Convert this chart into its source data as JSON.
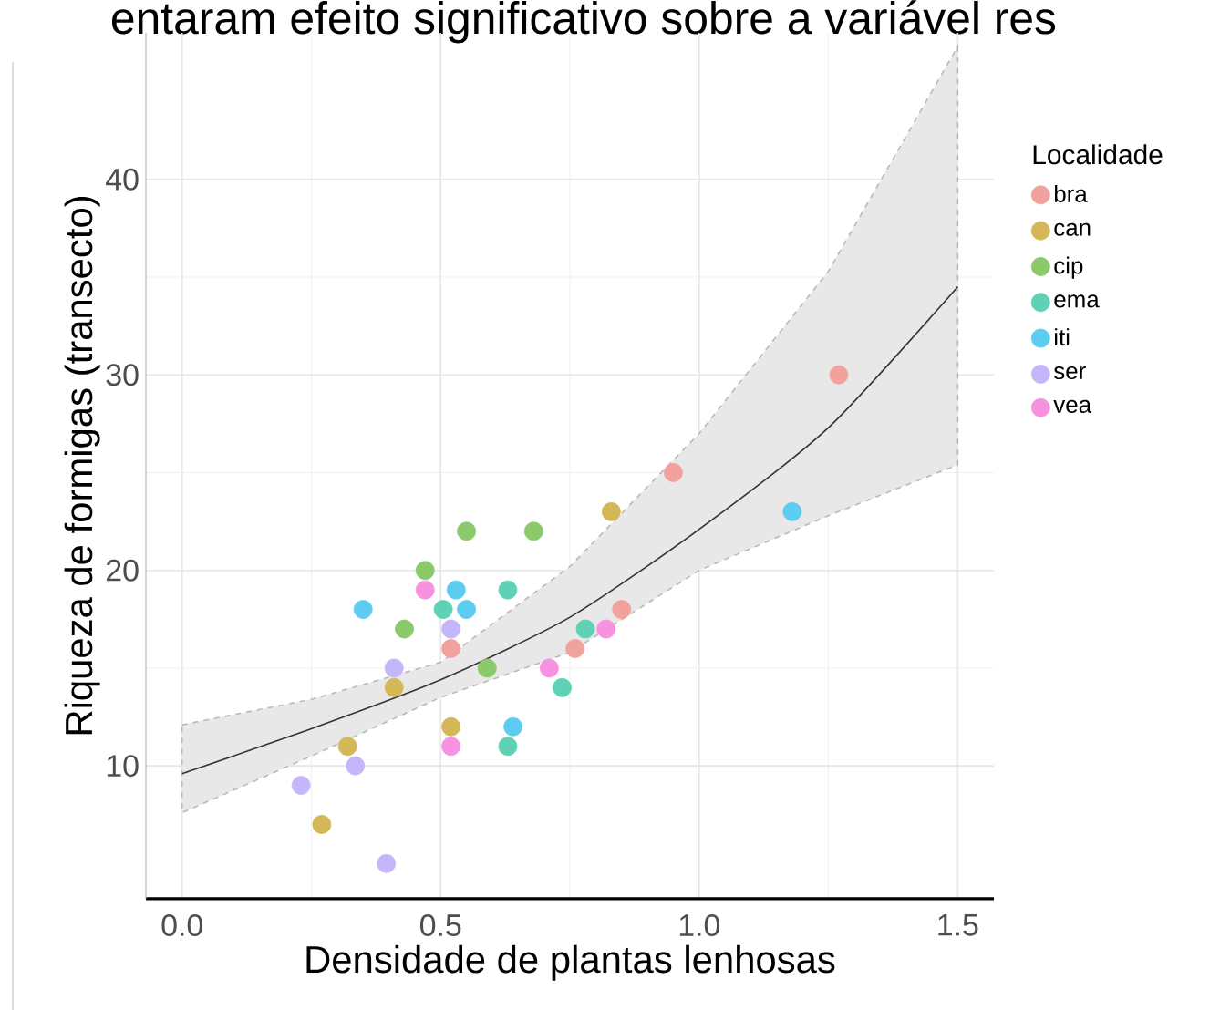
{
  "chart_data": {
    "type": "scatter",
    "annotations": [
      "entaram efeito significativo sobre a variável res"
    ],
    "xlabel": "Densidade de plantas lenhosas",
    "ylabel": "Riqueza de formigas (transecto)",
    "legend_title": "Localidade",
    "legend": "right",
    "grid": true,
    "xlim": [
      -0.07,
      1.57
    ],
    "ylim": [
      3.2,
      47.5
    ],
    "xticks": [
      {
        "value": 0,
        "label": "0.0"
      },
      {
        "value": 0.5,
        "label": "0.5"
      },
      {
        "value": 1,
        "label": "1.0"
      },
      {
        "value": 1.5,
        "label": "1.5"
      }
    ],
    "yticks": [
      10,
      20,
      30,
      40
    ],
    "series": [
      {
        "type": "line",
        "color": "#333333",
        "marker": "none",
        "x": [
          0,
          0.25,
          0.5,
          0.75,
          1.0,
          1.25,
          1.5
        ],
        "values": [
          9.6,
          11.9,
          14.4,
          17.6,
          22.1,
          27.3,
          34.5
        ],
        "lower": [
          7.6,
          10.5,
          13.5,
          15.8,
          20.0,
          22.8,
          25.4
        ],
        "upper": [
          12.1,
          13.4,
          15.3,
          20.2,
          27.0,
          35.3,
          46.8
        ]
      },
      {
        "name": "bra",
        "color": "#f2a29d",
        "marker": "circle",
        "x": [
          1.27,
          0.95,
          0.85,
          0.76,
          0.52
        ],
        "values": [
          30,
          25,
          18,
          16,
          16
        ]
      },
      {
        "name": "can",
        "color": "#d4b757",
        "marker": "circle",
        "x": [
          0.83,
          0.41,
          0.32,
          0.52,
          0.27
        ],
        "values": [
          23,
          14,
          11,
          12,
          7
        ]
      },
      {
        "name": "cip",
        "color": "#8cc96a",
        "marker": "circle",
        "x": [
          0.47,
          0.55,
          0.68,
          0.43,
          0.59
        ],
        "values": [
          20,
          22,
          22,
          17,
          15
        ]
      },
      {
        "name": "ema",
        "color": "#5fd1b5",
        "marker": "circle",
        "x": [
          0.505,
          0.63,
          0.78,
          0.735,
          0.63
        ],
        "values": [
          18,
          19,
          17,
          14,
          11
        ]
      },
      {
        "name": "iti",
        "color": "#5cccf0",
        "marker": "circle",
        "x": [
          0.35,
          0.53,
          0.55,
          0.64,
          1.18
        ],
        "values": [
          18,
          19,
          18,
          12,
          23
        ]
      },
      {
        "name": "ser",
        "color": "#c5b6fb",
        "marker": "circle",
        "x": [
          0.52,
          0.41,
          0.335,
          0.23,
          0.395
        ],
        "values": [
          17,
          15,
          10,
          9,
          5
        ]
      },
      {
        "name": "vea",
        "color": "#f792e0",
        "marker": "circle",
        "x": [
          0.47,
          0.82,
          0.71,
          0.52
        ],
        "values": [
          19,
          17,
          15,
          11
        ]
      }
    ]
  }
}
